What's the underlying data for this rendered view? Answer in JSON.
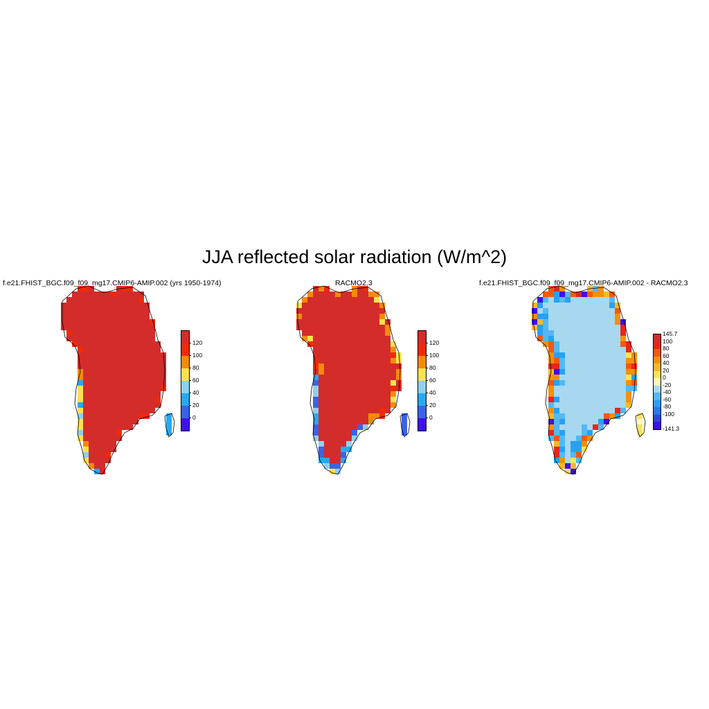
{
  "title": "JJA reflected solar radiation (W/m^2)",
  "panels": [
    {
      "id": "model",
      "title": "f.e21.FHIST_BGC.f09_f09_mg17.CMIP6-AMIP.002 (yrs 1950-1974)",
      "colorbar": {
        "labels": [
          "120",
          "100",
          "80",
          "60",
          "40",
          "20",
          "0"
        ],
        "colors": [
          "#d42b2b",
          "#f02a06",
          "#f58a0a",
          "#fae150",
          "#8fcfef",
          "#28a9f3",
          "#3a63e8",
          "#3e10ef"
        ]
      },
      "pattern": "model"
    },
    {
      "id": "obs",
      "title": "RACMO2.3",
      "colorbar": {
        "labels": [
          "120",
          "100",
          "80",
          "60",
          "40",
          "20",
          "0"
        ],
        "colors": [
          "#d42b2b",
          "#f02a06",
          "#f58a0a",
          "#fae150",
          "#8fcfef",
          "#28a9f3",
          "#3a63e8",
          "#3e10ef"
        ]
      },
      "pattern": "obs"
    },
    {
      "id": "diff",
      "title": "f.e21.FHIST_BGC.f09_f09_mg17.CMIP6-AMIP.002 - RACMO2.3",
      "colorbar": {
        "labels": [
          "145.7",
          "100",
          "80",
          "60",
          "40",
          "20",
          "0",
          "-20",
          "-40",
          "-60",
          "-80",
          "-100",
          "-141.3"
        ],
        "colors": [
          "#d42b2b",
          "#e8261a",
          "#f35a0a",
          "#f5900a",
          "#f8b82a",
          "#fbe35a",
          "#fdf7b8",
          "#a7d8f0",
          "#55b8f4",
          "#28a1f3",
          "#2a7ae8",
          "#2f49d8",
          "#3e10ef"
        ]
      },
      "pattern": "diff"
    }
  ]
}
